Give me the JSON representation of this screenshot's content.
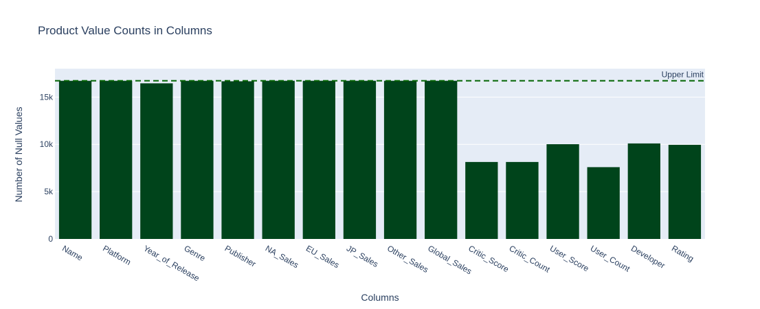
{
  "chart_data": {
    "type": "bar",
    "title": "Product Value Counts in Columns",
    "xlabel": "Columns",
    "ylabel": "Number of Null Values",
    "categories": [
      "Name",
      "Platform",
      "Year_of_Release",
      "Genre",
      "Publisher",
      "NA_Sales",
      "EU_Sales",
      "JP_Sales",
      "Other_Sales",
      "Global_Sales",
      "Critic_Score",
      "Critic_Count",
      "User_Score",
      "User_Count",
      "Developer",
      "Rating"
    ],
    "values": [
      16717,
      16719,
      16450,
      16717,
      16665,
      16719,
      16719,
      16719,
      16719,
      16719,
      8137,
      8137,
      10015,
      7590,
      10096,
      9950
    ],
    "ylim": [
      0,
      18000
    ],
    "yticks": [
      0,
      5000,
      10000,
      15000
    ],
    "ytick_labels": [
      "0",
      "5k",
      "10k",
      "15k"
    ],
    "reference_line": {
      "value": 16719,
      "label": "Upper Limit",
      "style": "dashed"
    },
    "bar_color": "#00441b",
    "line_color": "#006400",
    "plot_bg": "#e5ecf6",
    "grid": true
  }
}
